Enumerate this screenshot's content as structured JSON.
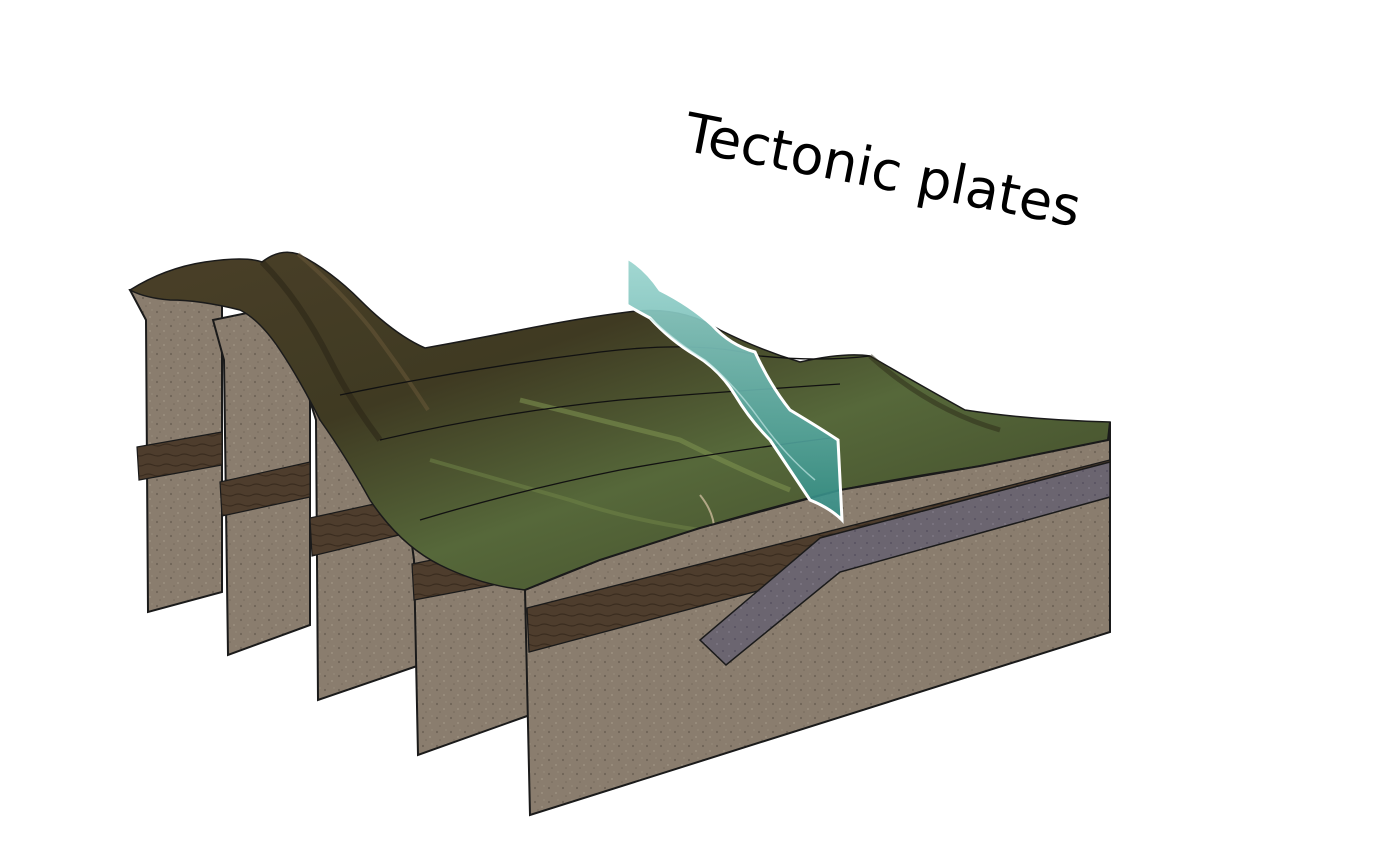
{
  "title": "Tectonic plates",
  "colors": {
    "background": "#ffffff",
    "rock": "#8a7d6e",
    "rock_dark": "#6e6254",
    "stratum": "#4e3d2d",
    "plate": "#6b6570",
    "terrain_dark": "#3f3a22",
    "terrain_green": "#5a6a35",
    "fault_plane": "#5fb8b0",
    "outline": "#1a1a1a"
  },
  "slices": 5
}
